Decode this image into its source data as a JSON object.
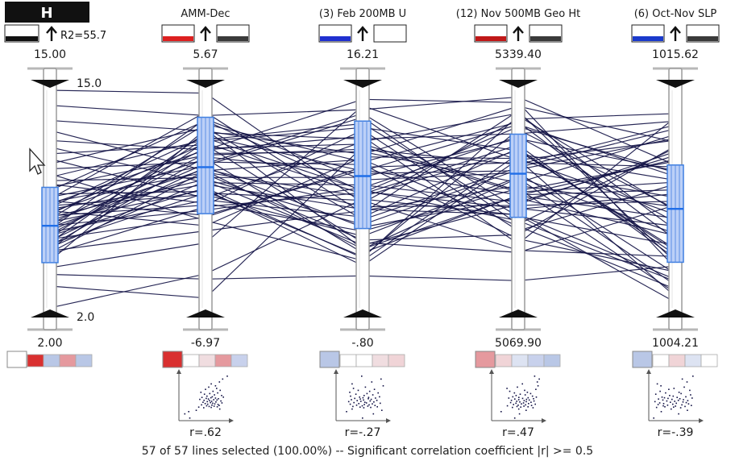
{
  "target_axis": {
    "label": "H",
    "r2_label": "R2=55.7"
  },
  "axes": [
    {
      "title": "",
      "top": "15.00",
      "bottom": "2.00",
      "slider_top": "15.0",
      "slider_bottom": "2.0",
      "correlation": "",
      "color_swatch": "#ffffff",
      "legend_colors": [
        "#ffffff",
        "#d93030",
        "#b9c7e6",
        "#e5999e",
        "#b9c7e6"
      ]
    },
    {
      "title": "AMM-Dec",
      "top": "5.67",
      "bottom": "-6.97",
      "correlation": "r=.62",
      "color_swatch": "#dd2020",
      "legend_colors": [
        "#d93030",
        "#ffffff",
        "#f0dde0",
        "#e5999e",
        "#c8d1ec"
      ]
    },
    {
      "title": "(3) Feb 200MB U",
      "top": "16.21",
      "bottom": "-.80",
      "correlation": "r=-.27",
      "color_swatch": "#2030d0",
      "legend_colors": [
        "#b9c7e6",
        "#ffffff",
        "#ffffff",
        "#f0dde0",
        "#f0d4d7"
      ]
    },
    {
      "title": "(12) Nov 500MB Geo Ht",
      "top": "5339.40",
      "bottom": "5069.90",
      "correlation": "r=.47",
      "color_swatch": "#c01818",
      "legend_colors": [
        "#e5999e",
        "#f0d4d7",
        "#dde3f2",
        "#c8d1ec",
        "#b9c7e6"
      ]
    },
    {
      "title": "(6) Oct-Nov SLP",
      "top": "1015.62",
      "bottom": "1004.21",
      "correlation": "r=-.39",
      "color_swatch": "#1a3acc",
      "legend_colors": [
        "#b9c7e6",
        "#ffffff",
        "#f0d4d7",
        "#dde3f2",
        "#ffffff"
      ]
    }
  ],
  "footer": "57 of 57 lines selected (100.00%)  --  Significant correlation coefficient  |r| >= 0.5",
  "chart_data": {
    "type": "parallel-coordinates",
    "line_count": 57,
    "selected_count": 57,
    "axes": [
      {
        "name": "H",
        "min": 2.0,
        "max": 15.0
      },
      {
        "name": "AMM-Dec",
        "min": -6.97,
        "max": 5.67
      },
      {
        "name": "(3) Feb 200MB U",
        "min": -0.8,
        "max": 16.21
      },
      {
        "name": "(12) Nov 500MB Geo Ht",
        "min": 5069.9,
        "max": 5339.4
      },
      {
        "name": "(6) Oct-Nov SLP",
        "min": 1004.21,
        "max": 1015.62
      }
    ],
    "lines": [
      [
        15.0,
        5.5,
        7.4,
        5303.7,
        1014.4
      ],
      [
        14.1,
        4.2,
        14.7,
        5331.0,
        1011.7
      ],
      [
        13.2,
        3.3,
        11.2,
        5319.6,
        1012.9
      ],
      [
        12.6,
        1.0,
        3.8,
        5230.7,
        1005.4
      ],
      [
        12.0,
        2.2,
        15.5,
        5324.2,
        1006.3
      ],
      [
        11.6,
        0.3,
        8.8,
        5200.9,
        1012.2
      ],
      [
        11.2,
        2.5,
        4.3,
        5138.6,
        1009.6
      ],
      [
        10.9,
        -0.6,
        12.2,
        5310.8,
        1008.3
      ],
      [
        10.6,
        3.5,
        6.1,
        5243.9,
        1013.6
      ],
      [
        10.3,
        1.5,
        10.4,
        5155.2,
        1006.1
      ],
      [
        10.0,
        -1.9,
        2.9,
        5260.4,
        1010.9
      ],
      [
        9.8,
        2.8,
        13.6,
        5183.0,
        1007.5
      ],
      [
        9.6,
        0.6,
        9.4,
        5279.5,
        1011.4
      ],
      [
        9.4,
        -0.9,
        5.2,
        5217.8,
        1005.0
      ],
      [
        9.2,
        1.9,
        11.6,
        5247.5,
        1013.8
      ],
      [
        9.0,
        3.9,
        8.3,
        5193.3,
        1008.5
      ],
      [
        8.8,
        -0.2,
        3.2,
        5290.6,
        1009.4
      ],
      [
        8.6,
        1.3,
        14.1,
        5173.4,
        1012.6
      ],
      [
        8.5,
        4.4,
        6.6,
        5313.7,
        1006.6
      ],
      [
        8.4,
        -1.6,
        10.0,
        5209.7,
        1010.4
      ],
      [
        8.3,
        0.9,
        7.9,
        5264.9,
        1007.2
      ],
      [
        8.2,
        2.2,
        12.6,
        5149.2,
        1014.2
      ],
      [
        8.1,
        -0.4,
        4.8,
        5231.9,
        1008.1
      ],
      [
        8.0,
        3.0,
        9.9,
        5297.0,
        1011.1
      ],
      [
        7.9,
        0.2,
        6.9,
        5185.6,
        1005.7
      ],
      [
        7.8,
        -2.2,
        11.0,
        5255.0,
        1009.1
      ],
      [
        7.7,
        1.7,
        3.5,
        5209.2,
        1012.0
      ],
      [
        7.6,
        2.6,
        8.1,
        5271.6,
        1006.8
      ],
      [
        7.5,
        -1.0,
        13.1,
        5165.4,
        1010.7
      ],
      [
        7.4,
        0.5,
        5.7,
        5241.0,
        1013.1
      ],
      [
        7.3,
        3.7,
        10.6,
        5300.1,
        1007.8
      ],
      [
        7.2,
        1.1,
        7.1,
        5196.8,
        1009.8
      ],
      [
        7.1,
        -0.1,
        2.5,
        5253.7,
        1004.8
      ],
      [
        7.0,
        2.3,
        12.0,
        5215.0,
        1011.9
      ],
      [
        6.9,
        -1.3,
        8.6,
        5282.0,
        1008.7
      ],
      [
        6.8,
        0.8,
        4.5,
        5160.3,
        1012.7
      ],
      [
        6.7,
        4.0,
        9.2,
        5237.3,
        1006.0
      ],
      [
        6.6,
        1.4,
        14.4,
        5192.0,
        1010.2
      ],
      [
        6.5,
        -0.7,
        6.3,
        5267.2,
        1007.0
      ],
      [
        6.4,
        2.0,
        11.4,
        5224.9,
        1013.3
      ],
      [
        6.3,
        0.0,
        3.1,
        5307.8,
        1009.3
      ],
      [
        6.2,
        2.9,
        8.4,
        5177.8,
        1005.6
      ],
      [
        6.1,
        -1.7,
        10.2,
        5249.8,
        1011.6
      ],
      [
        6.0,
        1.2,
        5.5,
        5205.6,
        1008.0
      ],
      [
        5.9,
        3.2,
        12.4,
        5285.6,
        1014.0
      ],
      [
        5.8,
        -0.3,
        7.6,
        5141.1,
        1006.9
      ],
      [
        5.7,
        1.8,
        9.7,
        5239.8,
        1010.0
      ],
      [
        5.6,
        0.4,
        4.1,
        5198.4,
        1012.4
      ],
      [
        5.5,
        2.7,
        13.3,
        5264.4,
        1007.3
      ],
      [
        5.4,
        -2.5,
        6.8,
        5221.2,
        1009.5
      ],
      [
        5.3,
        1.0,
        10.8,
        5170.9,
        1005.2
      ],
      [
        5.2,
        -1.1,
        8.2,
        5294.3,
        1011.3
      ],
      [
        4.8,
        3.4,
        3.8,
        5208.9,
        1008.9
      ],
      [
        4.4,
        -3.2,
        15.0,
        5252.9,
        1013.0
      ],
      [
        4.0,
        -5.3,
        1.7,
        5103.5,
        1006.4
      ],
      [
        3.3,
        -6.4,
        11.8,
        5213.3,
        1010.8
      ],
      [
        2.0,
        -5.0,
        7.7,
        5184.9,
        1004.5
      ]
    ],
    "highlight_band": [
      {
        "axis": "H",
        "low": 4.7,
        "high": 9.2,
        "mean": 6.9
      },
      {
        "axis": "AMM-Dec",
        "low": -1.5,
        "high": 4.1,
        "mean": 1.2
      },
      {
        "axis": "(3) Feb 200MB U",
        "low": 5.4,
        "high": 13.8,
        "mean": 9.5
      },
      {
        "axis": "(12) Nov 500MB Geo Ht",
        "low": 5182.0,
        "high": 5285.0,
        "mean": 5236.0
      },
      {
        "axis": "(6) Oct-Nov SLP",
        "low": 1006.6,
        "high": 1011.7,
        "mean": 1009.4
      }
    ]
  }
}
